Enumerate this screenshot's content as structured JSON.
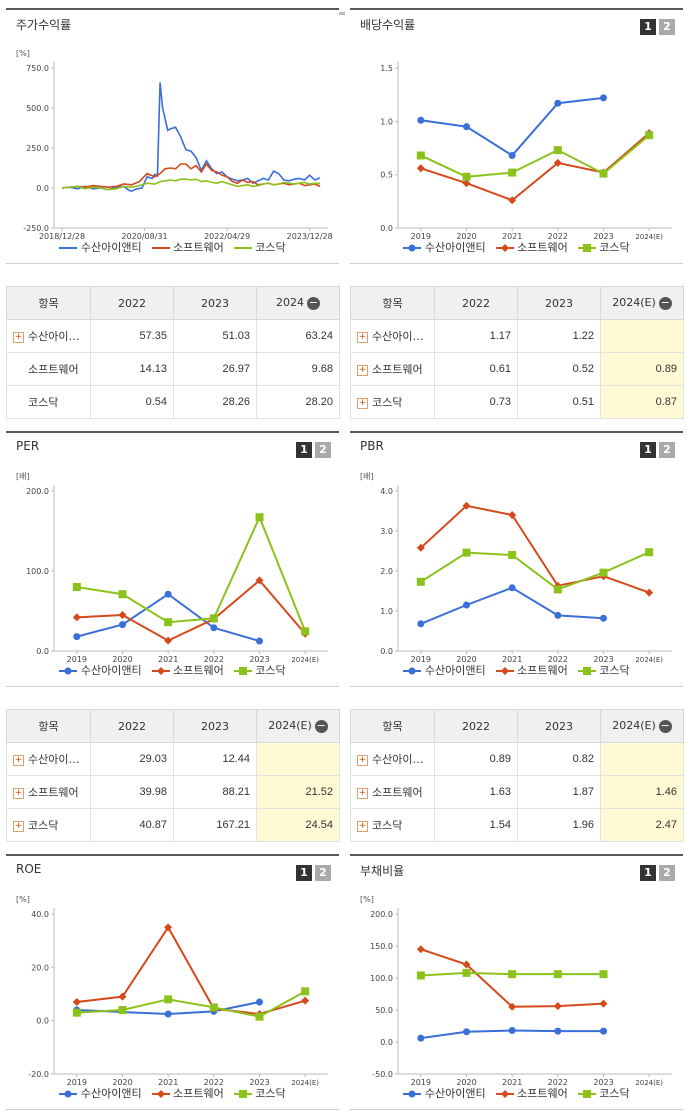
{
  "colors": {
    "s1": "#3a6fd8",
    "s2": "#d54a1c",
    "s3": "#8cc21c"
  },
  "legend": [
    "수산아이앤티",
    "소프트웨어",
    "코스닥"
  ],
  "pager": [
    "1",
    "2"
  ],
  "panels": {
    "stock": {
      "title": "주가수익률",
      "unit": "[%]"
    },
    "dividend": {
      "title": "배당수익률",
      "unit": ""
    },
    "per": {
      "title": "PER",
      "unit": "[배]"
    },
    "pbr": {
      "title": "PBR",
      "unit": "[배]"
    },
    "roe": {
      "title": "ROE",
      "unit": "[%]"
    },
    "debt": {
      "title": "부채비율",
      "unit": "[%]"
    }
  },
  "tables": {
    "stock": {
      "headers": [
        "항목",
        "2022",
        "2023",
        "2024"
      ],
      "rows": [
        {
          "name": "수산아이…",
          "plus": true,
          "v": [
            "57.35",
            "51.03",
            "63.24"
          ]
        },
        {
          "name": "소프트웨어",
          "plus": false,
          "v": [
            "14.13",
            "26.97",
            "9.68"
          ]
        },
        {
          "name": "코스닥",
          "plus": false,
          "v": [
            "0.54",
            "28.26",
            "28.20"
          ]
        }
      ]
    },
    "dividend": {
      "headers": [
        "항목",
        "2022",
        "2023",
        "2024(E)"
      ],
      "rows": [
        {
          "name": "수산아이…",
          "plus": true,
          "v": [
            "1.17",
            "1.22",
            ""
          ]
        },
        {
          "name": "소프트웨어",
          "plus": true,
          "v": [
            "0.61",
            "0.52",
            "0.89"
          ]
        },
        {
          "name": "코스닥",
          "plus": true,
          "v": [
            "0.73",
            "0.51",
            "0.87"
          ]
        }
      ]
    },
    "per": {
      "headers": [
        "항목",
        "2022",
        "2023",
        "2024(E)"
      ],
      "rows": [
        {
          "name": "수산아이…",
          "plus": true,
          "v": [
            "29.03",
            "12.44",
            ""
          ]
        },
        {
          "name": "소프트웨어",
          "plus": true,
          "v": [
            "39.98",
            "88.21",
            "21.52"
          ]
        },
        {
          "name": "코스닥",
          "plus": true,
          "v": [
            "40.87",
            "167.21",
            "24.54"
          ]
        }
      ]
    },
    "pbr": {
      "headers": [
        "항목",
        "2022",
        "2023",
        "2024(E)"
      ],
      "rows": [
        {
          "name": "수산아이…",
          "plus": true,
          "v": [
            "0.89",
            "0.82",
            ""
          ]
        },
        {
          "name": "소프트웨어",
          "plus": true,
          "v": [
            "1.63",
            "1.87",
            "1.46"
          ]
        },
        {
          "name": "코스닥",
          "plus": true,
          "v": [
            "1.54",
            "1.96",
            "2.47"
          ]
        }
      ]
    }
  },
  "chart_data": [
    {
      "id": "stock",
      "type": "line",
      "title": "주가수익률",
      "ylabel": "[%]",
      "ylim": [
        -250,
        750
      ],
      "yticks": [
        -250,
        0,
        250,
        500,
        750
      ],
      "ytick_labels": [
        "-250.0",
        "0.0",
        "250.0",
        "500.0",
        "750.0"
      ],
      "xtick_labels": [
        "2018/12/28",
        "2020/08/31",
        "2022/04/29",
        "2023/12/28"
      ],
      "xlim": [
        0,
        100
      ],
      "xtick_pos": [
        0,
        32,
        64,
        96
      ],
      "series": [
        {
          "name": "수산아이앤티",
          "x": [
            0,
            3,
            6,
            9,
            12,
            15,
            18,
            21,
            24,
            26,
            27,
            29,
            31,
            33,
            35,
            36,
            37,
            38,
            39,
            41,
            42,
            44,
            46,
            48,
            50,
            52,
            54,
            56,
            58,
            60,
            62,
            64,
            66,
            68,
            70,
            72,
            74,
            76,
            78,
            80,
            82,
            84,
            86,
            88,
            90,
            92,
            94,
            96,
            98,
            100
          ],
          "values": [
            0,
            5,
            -5,
            10,
            -5,
            0,
            -10,
            5,
            10,
            -15,
            -20,
            -5,
            0,
            70,
            60,
            85,
            75,
            660,
            500,
            360,
            370,
            380,
            320,
            240,
            230,
            190,
            110,
            170,
            120,
            90,
            100,
            70,
            55,
            45,
            50,
            60,
            30,
            45,
            60,
            50,
            105,
            90,
            50,
            45,
            55,
            60,
            50,
            80,
            50,
            63
          ]
        },
        {
          "name": "소프트웨어",
          "x": [
            0,
            3,
            6,
            9,
            12,
            15,
            18,
            21,
            24,
            27,
            30,
            33,
            36,
            38,
            40,
            42,
            44,
            46,
            48,
            50,
            52,
            54,
            56,
            58,
            60,
            62,
            64,
            66,
            68,
            70,
            72,
            74,
            76,
            78,
            80,
            82,
            84,
            86,
            88,
            90,
            92,
            94,
            96,
            98,
            100
          ],
          "values": [
            0,
            5,
            10,
            5,
            15,
            10,
            5,
            10,
            25,
            20,
            40,
            90,
            70,
            90,
            120,
            125,
            120,
            150,
            150,
            120,
            140,
            100,
            150,
            110,
            100,
            80,
            70,
            40,
            30,
            50,
            35,
            40,
            20,
            25,
            30,
            20,
            25,
            30,
            20,
            25,
            30,
            15,
            20,
            25,
            10
          ]
        },
        {
          "name": "코스닥",
          "x": [
            0,
            3,
            6,
            9,
            12,
            15,
            18,
            21,
            24,
            27,
            30,
            33,
            36,
            38,
            40,
            42,
            44,
            46,
            48,
            50,
            52,
            54,
            56,
            58,
            60,
            62,
            64,
            66,
            68,
            70,
            72,
            74,
            76,
            78,
            80,
            82,
            84,
            86,
            88,
            90,
            92,
            94,
            96,
            98,
            100
          ],
          "values": [
            0,
            5,
            10,
            -5,
            5,
            0,
            -10,
            -5,
            10,
            5,
            15,
            30,
            25,
            40,
            45,
            50,
            45,
            55,
            55,
            50,
            55,
            40,
            45,
            35,
            30,
            40,
            30,
            20,
            10,
            15,
            20,
            10,
            15,
            25,
            30,
            20,
            25,
            35,
            30,
            25,
            30,
            35,
            25,
            30,
            28
          ]
        }
      ]
    },
    {
      "id": "dividend",
      "type": "line",
      "title": "배당수익률",
      "ylabel": "",
      "ylim": [
        0,
        1.5
      ],
      "yticks": [
        0,
        0.5,
        1,
        1.5
      ],
      "ytick_labels": [
        "0.0",
        "0.5",
        "1.0",
        "1.5"
      ],
      "categories": [
        "2019",
        "2020",
        "2021",
        "2022",
        "2023",
        "2024(E)"
      ],
      "series": [
        {
          "name": "수산아이앤티",
          "values": [
            1.01,
            0.95,
            0.68,
            1.17,
            1.22,
            null
          ]
        },
        {
          "name": "소프트웨어",
          "values": [
            0.56,
            0.42,
            0.26,
            0.61,
            0.52,
            0.89
          ]
        },
        {
          "name": "코스닥",
          "values": [
            0.68,
            0.48,
            0.52,
            0.73,
            0.51,
            0.87
          ]
        }
      ]
    },
    {
      "id": "per",
      "type": "line",
      "title": "PER",
      "ylabel": "[배]",
      "ylim": [
        0,
        200
      ],
      "yticks": [
        0,
        100,
        200
      ],
      "ytick_labels": [
        "0.0",
        "100.0",
        "200.0"
      ],
      "categories": [
        "2019",
        "2020",
        "2021",
        "2022",
        "2023",
        "2024(E)"
      ],
      "series": [
        {
          "name": "수산아이앤티",
          "values": [
            18,
            33,
            71,
            29.03,
            12.44,
            null
          ]
        },
        {
          "name": "소프트웨어",
          "values": [
            42,
            45,
            13,
            39.98,
            88.21,
            21.52
          ]
        },
        {
          "name": "코스닥",
          "values": [
            80,
            71,
            36,
            40.87,
            167.21,
            24.54
          ]
        }
      ]
    },
    {
      "id": "pbr",
      "type": "line",
      "title": "PBR",
      "ylabel": "[배]",
      "ylim": [
        0,
        4
      ],
      "yticks": [
        0,
        1,
        2,
        3,
        4
      ],
      "ytick_labels": [
        "0.0",
        "1.0",
        "2.0",
        "3.0",
        "4.0"
      ],
      "categories": [
        "2019",
        "2020",
        "2021",
        "2022",
        "2023",
        "2024(E)"
      ],
      "series": [
        {
          "name": "수산아이앤티",
          "values": [
            0.68,
            1.15,
            1.58,
            0.89,
            0.82,
            null
          ]
        },
        {
          "name": "소프트웨어",
          "values": [
            2.58,
            3.63,
            3.4,
            1.63,
            1.87,
            1.46
          ]
        },
        {
          "name": "코스닥",
          "values": [
            1.73,
            2.46,
            2.4,
            1.54,
            1.96,
            2.47
          ]
        }
      ]
    },
    {
      "id": "roe",
      "type": "line",
      "title": "ROE",
      "ylabel": "[%]",
      "ylim": [
        -20,
        40
      ],
      "yticks": [
        -20,
        0,
        20,
        40
      ],
      "ytick_labels": [
        "-20.0",
        "0.0",
        "20.0",
        "40.0"
      ],
      "categories": [
        "2019",
        "2020",
        "2021",
        "2022",
        "2023",
        "2024(E)"
      ],
      "series": [
        {
          "name": "수산아이앤티",
          "values": [
            4,
            null,
            2.5,
            3.5,
            7,
            null
          ]
        },
        {
          "name": "소프트웨어",
          "values": [
            7,
            9,
            35,
            4.5,
            2.5,
            7.5
          ]
        },
        {
          "name": "코스닥",
          "values": [
            3,
            4,
            8,
            5,
            1.5,
            11
          ]
        }
      ]
    },
    {
      "id": "debt",
      "type": "line",
      "title": "부채비율",
      "ylabel": "[%]",
      "ylim": [
        -50,
        200
      ],
      "yticks": [
        -50,
        0,
        50,
        100,
        150,
        200
      ],
      "ytick_labels": [
        "-50.0",
        "0.0",
        "50.0",
        "100.0",
        "150.0",
        "200.0"
      ],
      "categories": [
        "2019",
        "2020",
        "2021",
        "2022",
        "2023",
        "2024(E)"
      ],
      "series": [
        {
          "name": "수산아이앤티",
          "values": [
            6,
            16,
            18,
            17,
            17,
            null
          ]
        },
        {
          "name": "소프트웨어",
          "values": [
            145,
            121,
            55,
            56,
            60,
            null
          ]
        },
        {
          "name": "코스닥",
          "values": [
            104,
            108,
            106,
            106,
            106,
            null
          ]
        }
      ]
    }
  ]
}
